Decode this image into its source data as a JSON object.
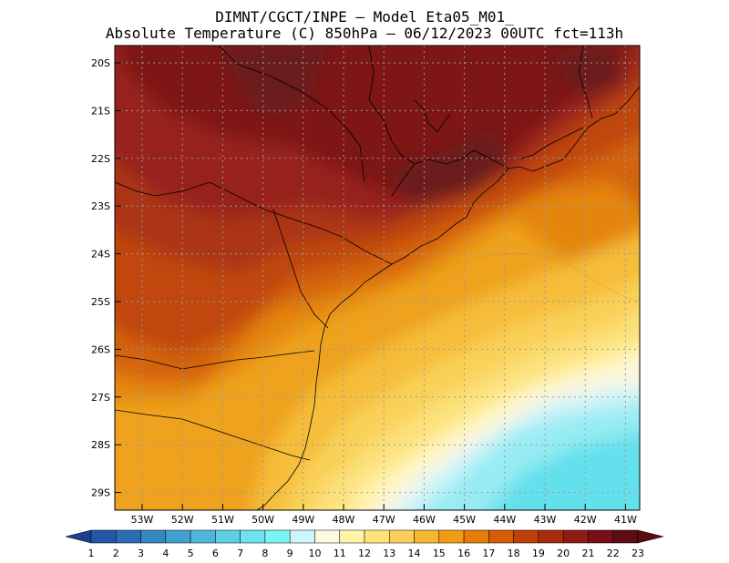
{
  "header": {
    "line1": "DIMNT/CGCT/INPE —  Model Eta05_M01_",
    "line2": "Absolute Temperature (C) 850hPa —  06/12/2023 00UTC fct=113h"
  },
  "map": {
    "lat_labels": [
      "20S",
      "21S",
      "22S",
      "23S",
      "24S",
      "25S",
      "26S",
      "27S",
      "28S",
      "29S"
    ],
    "lon_labels": [
      "53W",
      "52W",
      "51W",
      "50W",
      "49W",
      "48W",
      "47W",
      "46W",
      "45W",
      "44W",
      "43W",
      "42W",
      "41W"
    ]
  },
  "colorbar": {
    "labels": [
      "1",
      "2",
      "3",
      "4",
      "5",
      "6",
      "7",
      "8",
      "9",
      "10",
      "11",
      "12",
      "13",
      "14",
      "15",
      "16",
      "17",
      "18",
      "19",
      "20",
      "21",
      "22",
      "23"
    ],
    "colors": [
      "#1c3f8f",
      "#2356a3",
      "#2b6eb4",
      "#3587c2",
      "#41a0cf",
      "#4eb8da",
      "#5ccfe4",
      "#6be2ec",
      "#7cf3f3",
      "#cdf5fb",
      "#fefae0",
      "#fff4a6",
      "#ffe27a",
      "#fdcf5a",
      "#f7b733",
      "#f29c13",
      "#e67d07",
      "#d65d05",
      "#c03f05",
      "#a72c0c",
      "#8f1c14",
      "#781018",
      "#5e0b14"
    ]
  },
  "field_colors": {
    "t23": "#6b1a1c",
    "t22": "#7e1218",
    "t21": "#97231a",
    "t20": "#ab3413",
    "t19": "#c0460b",
    "t18": "#d46408",
    "t17": "#e4860f",
    "t16": "#eea21e",
    "t15": "#f5bd3a",
    "t14": "#f9d158",
    "t13": "#fce27c",
    "t12": "#fff3ab",
    "t11": "#fdf6dc",
    "t10": "#d2f4fa",
    "t9": "#97ecf3",
    "t8": "#64e0ec"
  }
}
